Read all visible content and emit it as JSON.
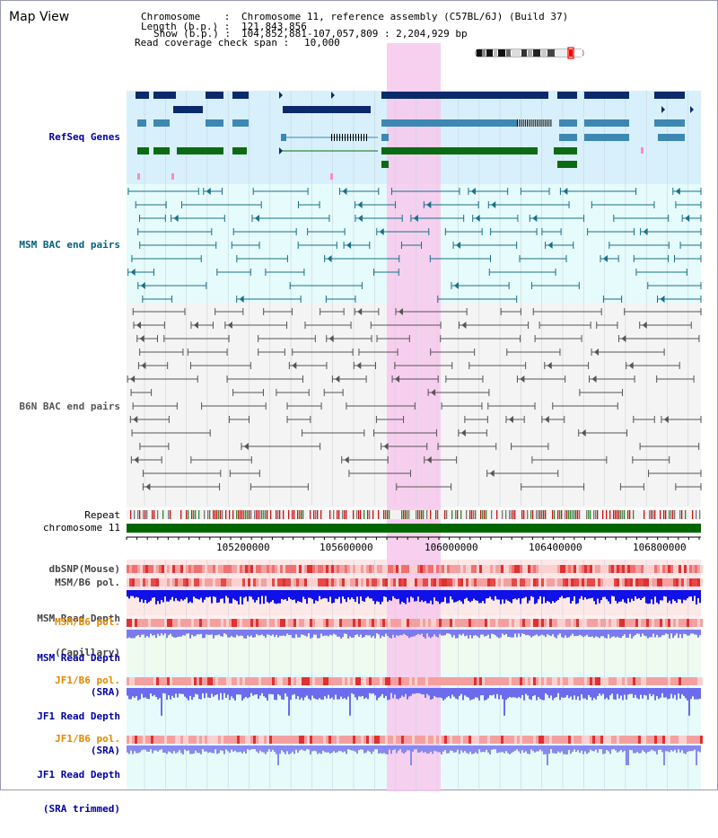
{
  "view_title": "Map View",
  "header": {
    "chromosome_key": "Chromosome    :",
    "chromosome_val": "Chromosome 11, reference assembly (C57BL/6J) (Build 37)",
    "length_key": "Length (b.p.) :",
    "length_val": "121,843,856",
    "show_key": "Show (b.p.) :",
    "show_val": "104,852,881-107,057,809 : 2,204,929 bp",
    "coverage_key": "Read coverage check span :",
    "coverage_val": "10,000"
  },
  "tracks": {
    "refseq": "RefSeq Genes",
    "msm_bac": "MSM BAC end pairs",
    "b6n_bac": "B6N BAC end pairs",
    "repeat": "Repeat",
    "chromosome": "chromosome 11",
    "dbsnp": "dbSNP(Mouse)",
    "msm_b6_pol": "MSM/B6 pol.",
    "msm_depth_cap_1": "MSM Read Depth",
    "msm_depth_cap_2": "(Capillary)",
    "msm_b6_pol_sra": "MSM/B6 pol.",
    "msm_depth_sra_1": "MSM Read Depth",
    "msm_depth_sra_2": "(SRA)",
    "jf1_b6_pol": "JF1/B6 pol.",
    "jf1_depth_1": "JF1 Read Depth",
    "jf1_depth_2": "(SRA)",
    "jf1_b6_pol_trim": "JF1/B6 pol.",
    "jf1_trim_1": "JF1 Read Depth",
    "jf1_trim_2": "(SRA trimmed)"
  },
  "axis_ticks": [
    "105200000",
    "105600000",
    "106000000",
    "106400000",
    "106800000"
  ],
  "colors": {
    "highlight": "#f7c8ec",
    "refseq_bg": "#d8f0fb",
    "navy": "#0a2a6b",
    "steel": "#3d87b3",
    "green": "#0b6b12",
    "msm_line": "#17708a",
    "b6n_line": "#555555",
    "label_blue": "#0000a0",
    "label_teal": "#006080",
    "label_orange": "#e08800",
    "chromosome_green": "#006600"
  }
}
